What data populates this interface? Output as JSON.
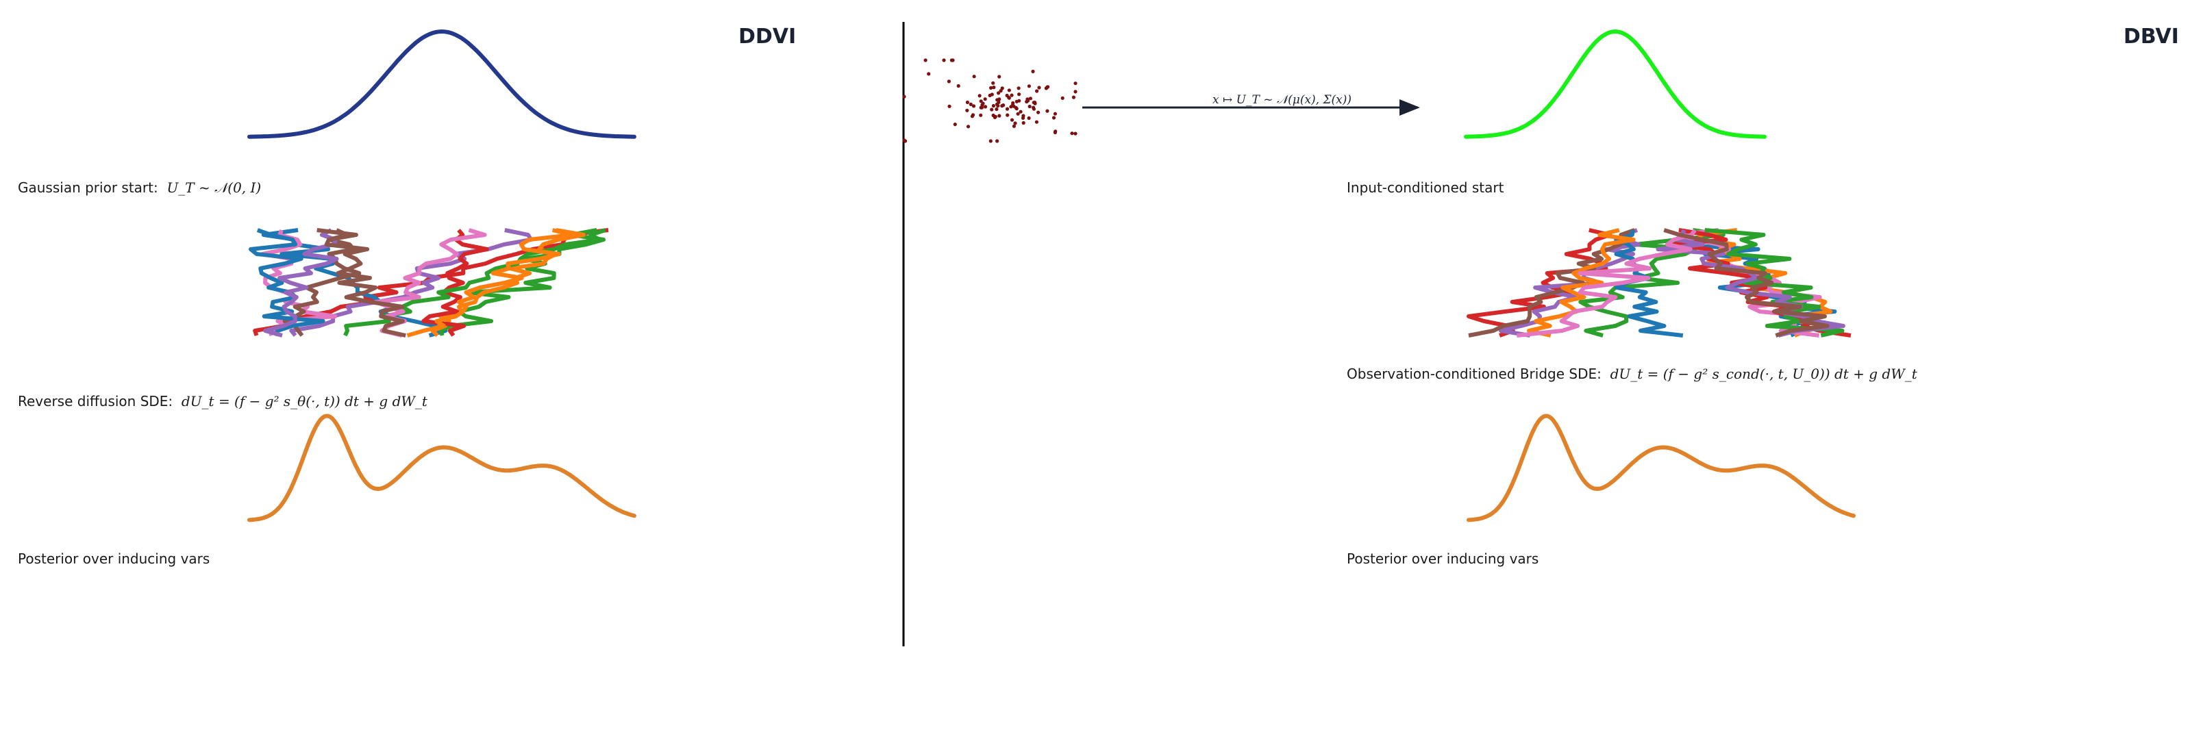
{
  "left_panel": {
    "title": "DDVI",
    "prior_label": "Gaussian prior start:",
    "prior_formula": "U_T ~ 𝒩(0, I)",
    "sde_label": "Reverse diffusion SDE:",
    "sde_formula": "dU_t = (f − g² s_θ(·, t)) dt + g dW_t",
    "posterior_label": "Posterior over inducing vars",
    "prior_color": "#24398c",
    "posterior_color": "#e0822a"
  },
  "right_panel": {
    "title": "DBVI",
    "prior_label": "Input-conditioned start",
    "sde_label": "Observation-conditioned Bridge SDE:",
    "sde_formula": "dU_t = (f − g² s_cond(·, t, U_0)) dt + g dW_t",
    "posterior_label": "Posterior over inducing vars",
    "mapping_label": "x ↦ U_T ~ 𝒩(μ(x), Σ(x))",
    "prior_color": "#18f018",
    "posterior_color": "#e0822a",
    "scatter_color": "#7a1010"
  },
  "path_colors": [
    "#d62728",
    "#1f77b4",
    "#2ca02c",
    "#ff7f0e",
    "#9467bd",
    "#e377c2",
    "#8c564b"
  ]
}
